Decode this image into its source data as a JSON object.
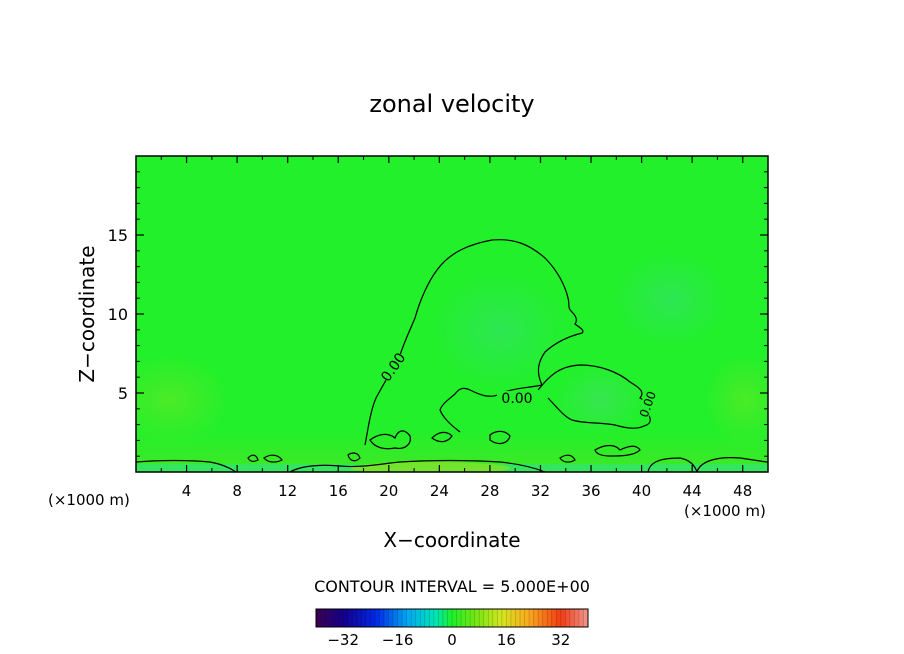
{
  "chart_data": {
    "type": "heatmap",
    "title": "zonal velocity",
    "xlabel": "X−coordinate",
    "ylabel": "Z−coordinate",
    "x_unit_left": "(×1000 m)",
    "x_unit_right": "(×1000 m)",
    "xlim": [
      0,
      50
    ],
    "ylim": [
      0,
      20
    ],
    "x_ticks": [
      4,
      8,
      12,
      16,
      20,
      24,
      28,
      32,
      36,
      40,
      44,
      48
    ],
    "x_tick_labels": [
      "4",
      "8",
      "12",
      "16",
      "20",
      "24",
      "28",
      "32",
      "36",
      "40",
      "44",
      "48"
    ],
    "y_ticks": [
      5,
      10,
      15
    ],
    "y_tick_labels": [
      "5",
      "10",
      "15"
    ],
    "grid": false,
    "contour_labels": [
      "0.00",
      "0.00",
      "0.00"
    ],
    "contour_interval_text": "CONTOUR INTERVAL = 5.000E+00",
    "colorbar": {
      "range": [
        -40,
        40
      ],
      "ticks": [
        -32,
        -16,
        0,
        16,
        32
      ],
      "tick_labels": [
        "−32",
        "−16",
        "0",
        "16",
        "32"
      ]
    },
    "colors": {
      "background_field": "#22f02a",
      "negative_weak": "#2fe850",
      "positive_weak": "#66e81e",
      "contour_line": "#000000"
    }
  }
}
